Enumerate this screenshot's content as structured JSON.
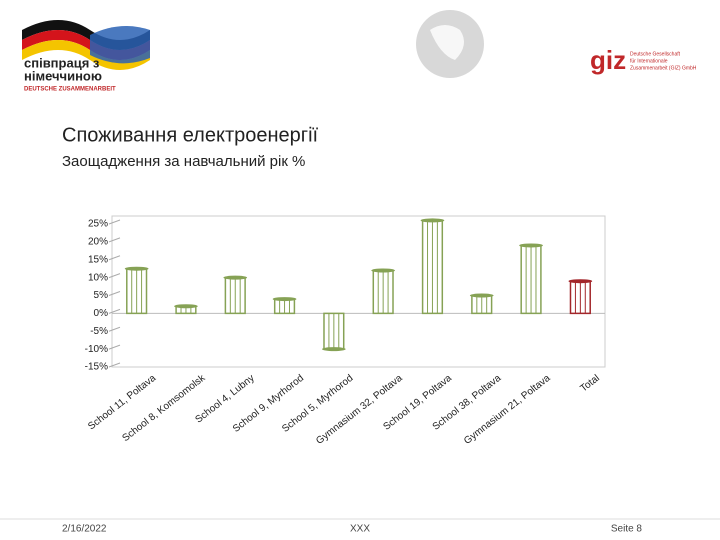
{
  "header": {
    "partner_line1": "співпраця з",
    "partner_line2": "німеччиною",
    "partner_line3": "DEUTSCHE ZUSAMMENARBEIT",
    "giz": "giz",
    "giz_line1": "Deutsche Gesellschaft",
    "giz_line2": "für Internationale",
    "giz_line3": "Zusammenarbeit (GIZ) GmbH"
  },
  "chart_data": {
    "type": "bar",
    "title": "Споживання електроенергії",
    "subtitle": "Заощадження за навчальний рік %",
    "categories": [
      "School 11, Poltava",
      "School 8, Komsomolsk",
      "School 4, Lubny",
      "School 9, Myrhorod",
      "School 5, Myrhorod",
      "Gymnasium 32, Poltava",
      "School 19, Poltava",
      "School 38, Poltava",
      "Gymnasium 21, Poltava",
      "Total"
    ],
    "values": [
      12.5,
      2,
      10,
      4,
      -10,
      12,
      26,
      5,
      19,
      9
    ],
    "colors": [
      "#86a255",
      "#86a255",
      "#86a255",
      "#86a255",
      "#86a255",
      "#86a255",
      "#86a255",
      "#86a255",
      "#86a255",
      "#a3262a"
    ],
    "ylim": [
      -15,
      25
    ],
    "yticks": [
      {
        "value": 25,
        "label": "25%"
      },
      {
        "value": 20,
        "label": "20%"
      },
      {
        "value": 15,
        "label": "15%"
      },
      {
        "value": 10,
        "label": "10%"
      },
      {
        "value": 5,
        "label": "5%"
      },
      {
        "value": 0,
        "label": "0%"
      },
      {
        "value": -5,
        "label": "-5%"
      },
      {
        "value": -10,
        "label": "-10%"
      },
      {
        "value": -15,
        "label": "-15%"
      }
    ]
  },
  "footer": {
    "date": "2/16/2022",
    "center": "XXX",
    "page": "Seite 8"
  }
}
